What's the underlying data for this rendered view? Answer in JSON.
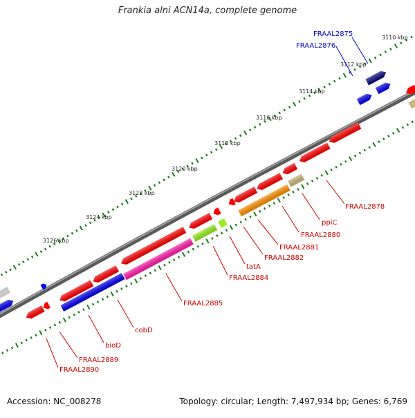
{
  "title": "Frankia alni ACN14a, complete genome",
  "footer": {
    "accession": "Accession: NC_008278",
    "stats": "Topology: circular; Length: 7,497,934 bp; Genes: 6,769"
  },
  "colors": {
    "backbone": "#808080",
    "label_forward": "#0000cc",
    "label_reverse": "#cc0000",
    "tick": "#1a7a1a"
  },
  "ticks": [
    {
      "label": "3110 kbp"
    },
    {
      "label": "3112 kbp"
    },
    {
      "label": "3114 kbp"
    },
    {
      "label": "3116 kbp"
    },
    {
      "label": "3118 kbp"
    },
    {
      "label": "3120 kbp"
    },
    {
      "label": "3122 kbp"
    },
    {
      "label": "3124 kbp"
    },
    {
      "label": "3126 kbp"
    }
  ],
  "labels": [
    {
      "id": "FRAAL2875",
      "text": "FRAAL2875",
      "strand": "forward"
    },
    {
      "id": "FRAAL2876",
      "text": "FRAAL2876",
      "strand": "forward"
    },
    {
      "id": "FRAAL2878",
      "text": "FRAAL2878",
      "strand": "reverse"
    },
    {
      "id": "ppiC",
      "text": "ppiC",
      "strand": "reverse"
    },
    {
      "id": "FRAAL2880",
      "text": "FRAAL2880",
      "strand": "reverse"
    },
    {
      "id": "FRAAL2881",
      "text": "FRAAL2881",
      "strand": "reverse"
    },
    {
      "id": "FRAAL2882",
      "text": "FRAAL2882",
      "strand": "reverse"
    },
    {
      "id": "tatA",
      "text": "tatA",
      "strand": "reverse"
    },
    {
      "id": "FRAAL2884",
      "text": "FRAAL2884",
      "strand": "reverse"
    },
    {
      "id": "FRAAL2885",
      "text": "FRAAL2885",
      "strand": "reverse"
    },
    {
      "id": "cobD",
      "text": "cobD",
      "strand": "reverse"
    },
    {
      "id": "bioD",
      "text": "bioD",
      "strand": "reverse"
    },
    {
      "id": "FRAAL2889",
      "text": "FRAAL2889",
      "strand": "reverse"
    },
    {
      "id": "FRAAL2890",
      "text": "FRAAL2890",
      "strand": "reverse"
    }
  ]
}
